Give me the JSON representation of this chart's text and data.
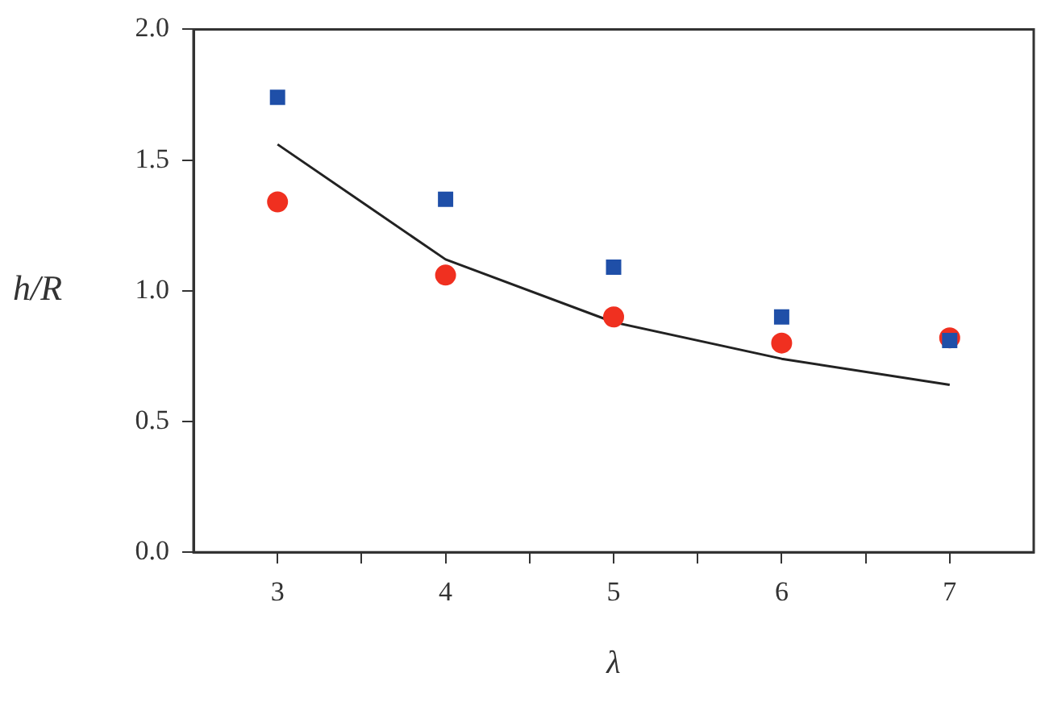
{
  "chart_data": {
    "type": "scatter",
    "xlabel": "λ",
    "ylabel": "h/R",
    "x": [
      3,
      4,
      5,
      6,
      7
    ],
    "series": [
      {
        "marker": "square",
        "color": "#1f4fa8",
        "values": [
          1.74,
          1.35,
          1.09,
          0.9,
          0.81
        ]
      },
      {
        "marker": "circle",
        "color": "#f03020",
        "values": [
          1.34,
          1.06,
          0.9,
          0.8,
          0.82
        ]
      },
      {
        "type": "line",
        "marker": "none",
        "line_style": "solid",
        "color": "#222222",
        "values": [
          1.56,
          1.12,
          0.88,
          0.74,
          0.64
        ]
      }
    ],
    "xlim": [
      2.5,
      7.5
    ],
    "xticks": [
      3,
      {
        "value": 3.5,
        "label": null
      },
      4,
      {
        "value": 4.5,
        "label": null
      },
      5,
      {
        "value": 5.5,
        "label": null
      },
      6,
      {
        "value": 6.5,
        "label": null
      },
      7
    ],
    "ylim": [
      0,
      2
    ],
    "yticks": [
      "0.0",
      0.5,
      "1.0",
      1.5,
      "2.0"
    ],
    "grid": false,
    "legend": false
  }
}
